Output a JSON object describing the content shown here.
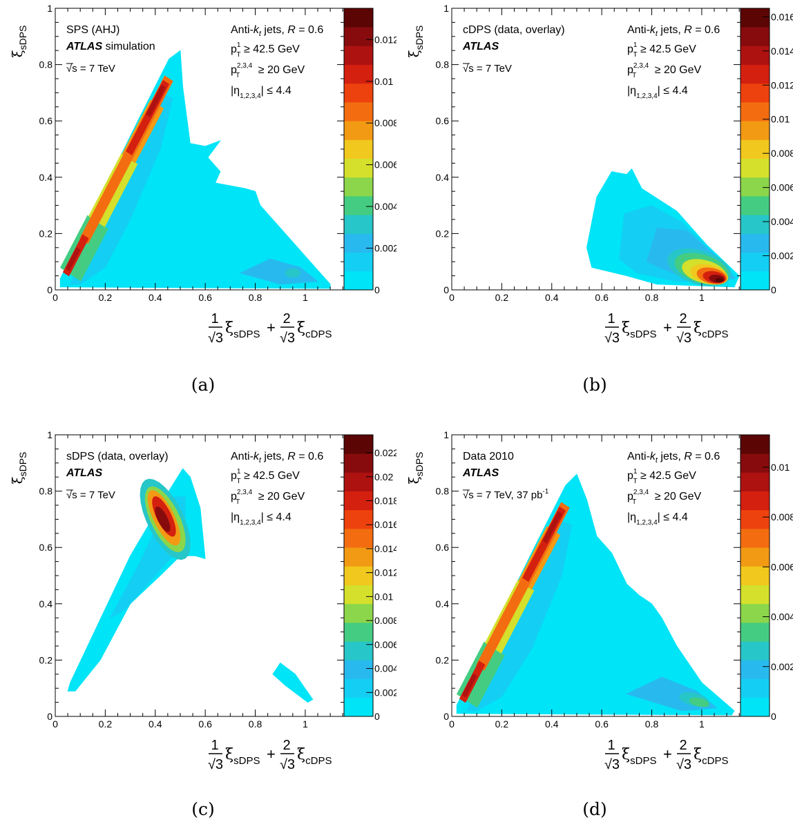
{
  "chart_data": [
    {
      "type": "heatmap",
      "panel": "(a)",
      "sample_label": "SPS (AHJ)",
      "experiment": "ATLAS",
      "experiment_suffix": "simulation",
      "energy_label": "√s = 7 TeV",
      "cuts": [
        "Anti-k_t jets, R = 0.6",
        "p_T^1 ≥ 42.5 GeV",
        "p_T^2,3,4 ≥ 20 GeV",
        "|η_1,2,3,4| ≤ 4.4"
      ],
      "xlabel": "1/√3 ξ_sDPS + 2/√3 ξ_cDPS",
      "ylabel": "ξ_sDPS",
      "xlim": [
        0,
        1.155
      ],
      "ylim": [
        0,
        1
      ],
      "xticks": [
        "0",
        "0.2",
        "0.4",
        "0.6",
        "0.8",
        "1"
      ],
      "yticks": [
        "0",
        "0.2",
        "0.4",
        "0.6",
        "0.8",
        "1"
      ],
      "zlim": [
        0,
        0.0135
      ],
      "zticks": [
        "0",
        "0.002",
        "0.004",
        "0.006",
        "0.008",
        "0.01",
        "0.012"
      ],
      "features": [
        {
          "shape": "ridge",
          "along": "x = ξ/√3 edge",
          "from": [
            0.02,
            0.03
          ],
          "to": [
            0.455,
            0.77
          ],
          "peak_z": 0.0125
        },
        {
          "shape": "region",
          "extent": "triangle up to (0.5, 0.85) and (1.1, 0.02)",
          "z": 0.0005
        },
        {
          "shape": "blob",
          "center": [
            0.94,
            0.06
          ],
          "z": 0.002
        },
        {
          "shape": "gap",
          "center": [
            0.72,
            0.32
          ],
          "z": 0
        }
      ]
    },
    {
      "type": "heatmap",
      "panel": "(b)",
      "sample_label": "cDPS (data, overlay)",
      "experiment": "ATLAS",
      "experiment_suffix": "",
      "energy_label": "√s = 7 TeV",
      "cuts": [
        "Anti-k_t jets, R = 0.6",
        "p_T^1 ≥ 42.5 GeV",
        "p_T^2,3,4 ≥ 20 GeV",
        "|η_1,2,3,4| ≤ 4.4"
      ],
      "xlabel": "1/√3 ξ_sDPS + 2/√3 ξ_cDPS",
      "ylabel": "ξ_sDPS",
      "xlim": [
        0,
        1.155
      ],
      "ylim": [
        0,
        1
      ],
      "xticks": [
        "0",
        "0.2",
        "0.4",
        "0.6",
        "0.8",
        "1"
      ],
      "yticks": [
        "0",
        "0.2",
        "0.4",
        "0.6",
        "0.8",
        "1"
      ],
      "zlim": [
        0,
        0.0165
      ],
      "zticks": [
        "0",
        "0.002",
        "0.004",
        "0.006",
        "0.008",
        "0.01",
        "0.012",
        "0.014",
        "0.016"
      ],
      "features": [
        {
          "shape": "region",
          "extent": "x 0.55–1.15, y 0–0.42",
          "z": 0.001
        },
        {
          "shape": "peak",
          "center": [
            1.05,
            0.04
          ],
          "z": 0.016
        }
      ]
    },
    {
      "type": "heatmap",
      "panel": "(c)",
      "sample_label": "sDPS (data, overlay)",
      "experiment": "ATLAS",
      "experiment_suffix": "",
      "energy_label": "√s = 7 TeV",
      "cuts": [
        "Anti-k_t jets, R = 0.6",
        "p_T^1 ≥ 42.5 GeV",
        "p_T^2,3,4 ≥ 20 GeV",
        "|η_1,2,3,4| ≤ 4.4"
      ],
      "xlabel": "1/√3 ξ_sDPS + 2/√3 ξ_cDPS",
      "ylabel": "ξ_sDPS",
      "xlim": [
        0,
        1.155
      ],
      "ylim": [
        0,
        1
      ],
      "xticks": [
        "0",
        "0.2",
        "0.4",
        "0.6",
        "0.8",
        "1"
      ],
      "yticks": [
        "0",
        "0.2",
        "0.4",
        "0.6",
        "0.8",
        "1"
      ],
      "zlim": [
        0,
        0.0235
      ],
      "zticks": [
        "0",
        "0.002",
        "0.004",
        "0.006",
        "0.008",
        "0.01",
        "0.012",
        "0.014",
        "0.016",
        "0.018",
        "0.02",
        "0.022"
      ],
      "features": [
        {
          "shape": "region",
          "extent": "band from (0.05, 0.09) to (0.55, 0.88)",
          "z": 0.001
        },
        {
          "shape": "peak",
          "center": [
            0.43,
            0.7
          ],
          "z": 0.022
        },
        {
          "shape": "blob",
          "center": [
            0.95,
            0.12
          ],
          "z": 0.001
        }
      ]
    },
    {
      "type": "heatmap",
      "panel": "(d)",
      "sample_label": "Data 2010",
      "experiment": "ATLAS",
      "experiment_suffix": "",
      "energy_label": "√s = 7 TeV, 37 pb",
      "energy_label_sup": "-1",
      "cuts": [
        "Anti-k_t jets, R = 0.6",
        "p_T^1 ≥ 42.5 GeV",
        "p_T^2,3,4 ≥ 20 GeV",
        "|η_1,2,3,4| ≤ 4.4"
      ],
      "xlabel": "1/√3 ξ_sDPS + 2/√3 ξ_cDPS",
      "ylabel": "ξ_sDPS",
      "xlim": [
        0,
        1.155
      ],
      "ylim": [
        0,
        1
      ],
      "xticks": [
        "0",
        "0.2",
        "0.4",
        "0.6",
        "0.8",
        "1"
      ],
      "yticks": [
        "0",
        "0.2",
        "0.4",
        "0.6",
        "0.8",
        "1"
      ],
      "zlim": [
        0,
        0.0113
      ],
      "zticks": [
        "0",
        "0.002",
        "0.004",
        "0.006",
        "0.008",
        "0.01"
      ],
      "features": [
        {
          "shape": "ridge",
          "along": "x = ξ/√3 edge",
          "from": [
            0.02,
            0.03
          ],
          "to": [
            0.455,
            0.77
          ],
          "peak_z": 0.0105
        },
        {
          "shape": "region",
          "extent": "triangle up to (0.5, 0.86) and (1.13, 0.02)",
          "z": 0.0005
        },
        {
          "shape": "blob",
          "center": [
            0.98,
            0.05
          ],
          "z": 0.003
        }
      ]
    }
  ],
  "captions": [
    "(a)",
    "(b)",
    "(c)",
    "(d)"
  ],
  "colors": {
    "palette": [
      "#00E4F7",
      "#14CFF3",
      "#28BAEF",
      "#27C6C8",
      "#44CD82",
      "#8BD64A",
      "#D4E02B",
      "#F1C81E",
      "#F39A14",
      "#F36D10",
      "#EE420E",
      "#D4200F",
      "#AE1210",
      "#870B0D",
      "#5C0505"
    ],
    "frame": "#000000"
  }
}
